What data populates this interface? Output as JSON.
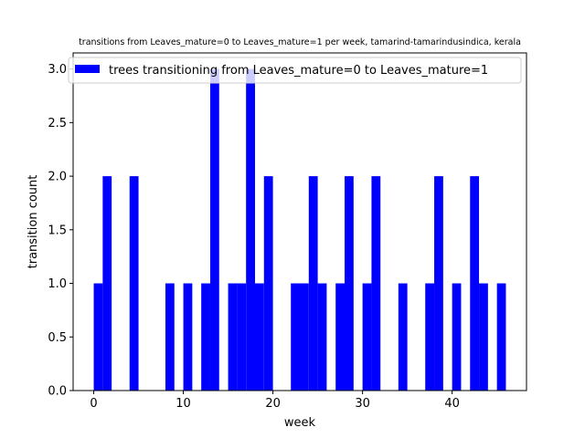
{
  "chart_data": {
    "type": "bar",
    "title": "transitions from Leaves_mature=0 to Leaves_mature=1 per week, tamarind-tamarindusindica, kerala",
    "xlabel": "week",
    "ylabel": "transition count",
    "xlim": [
      -2.3,
      48.3
    ],
    "ylim": [
      0,
      3.15
    ],
    "bar_width": 1,
    "x_ticks": [
      0,
      10,
      20,
      30,
      40
    ],
    "y_ticks": [
      0.0,
      0.5,
      1.0,
      1.5,
      2.0,
      2.5,
      3.0
    ],
    "x_tick_labels": [
      "0",
      "10",
      "20",
      "30",
      "40"
    ],
    "y_tick_labels": [
      "0.0",
      "0.5",
      "1.0",
      "1.5",
      "2.0",
      "2.5",
      "3.0"
    ],
    "legend_position": "top",
    "bar_color": "#0000ff",
    "grid": false,
    "series": [
      {
        "name": "trees transitioning from Leaves_mature=0 to Leaves_mature=1",
        "x": [
          0,
          1,
          4,
          8,
          10,
          12,
          13,
          15,
          16,
          17,
          18,
          19,
          22,
          23,
          24,
          25,
          27,
          28,
          30,
          31,
          34,
          37,
          38,
          40,
          42,
          43,
          45
        ],
        "values": [
          1,
          2,
          2,
          1,
          1,
          1,
          3,
          1,
          1,
          3,
          1,
          2,
          1,
          1,
          2,
          1,
          1,
          2,
          1,
          2,
          1,
          1,
          2,
          1,
          2,
          1,
          1
        ]
      }
    ]
  }
}
